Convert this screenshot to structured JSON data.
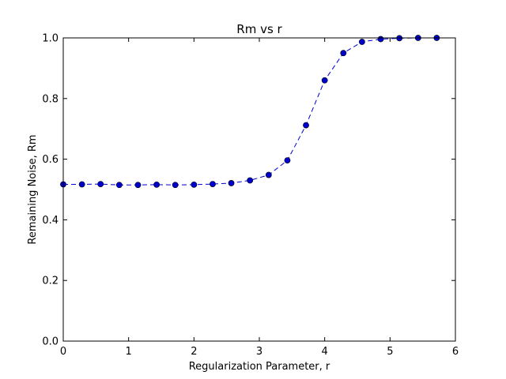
{
  "chart_data": {
    "type": "line",
    "title": "Rm vs r",
    "xlabel": "Regularization Parameter, r",
    "ylabel": "Remaining Noise, Rm",
    "xlim": [
      0,
      6
    ],
    "ylim": [
      0.0,
      1.0
    ],
    "x_ticks": [
      0,
      1,
      2,
      3,
      4,
      5,
      6
    ],
    "x_tick_labels": [
      "0",
      "1",
      "2",
      "3",
      "4",
      "5",
      "6"
    ],
    "y_ticks": [
      0.0,
      0.2,
      0.4,
      0.6,
      0.8,
      1.0
    ],
    "y_tick_labels": [
      "0.0",
      "0.2",
      "0.4",
      "0.6",
      "0.8",
      "1.0"
    ],
    "grid": false,
    "legend": "none",
    "series": [
      {
        "line_style": "dashed",
        "marker": "circle",
        "color": "#0000cc",
        "x": [
          0.0,
          0.286,
          0.571,
          0.857,
          1.143,
          1.429,
          1.714,
          2.0,
          2.286,
          2.571,
          2.857,
          3.143,
          3.429,
          3.714,
          4.0,
          4.286,
          4.571,
          4.857,
          5.143,
          5.429,
          5.714
        ],
        "y": [
          0.517,
          0.517,
          0.518,
          0.515,
          0.515,
          0.516,
          0.515,
          0.516,
          0.518,
          0.521,
          0.53,
          0.548,
          0.596,
          0.712,
          0.86,
          0.95,
          0.987,
          0.996,
          0.999,
          1.0,
          1.0
        ]
      }
    ]
  }
}
